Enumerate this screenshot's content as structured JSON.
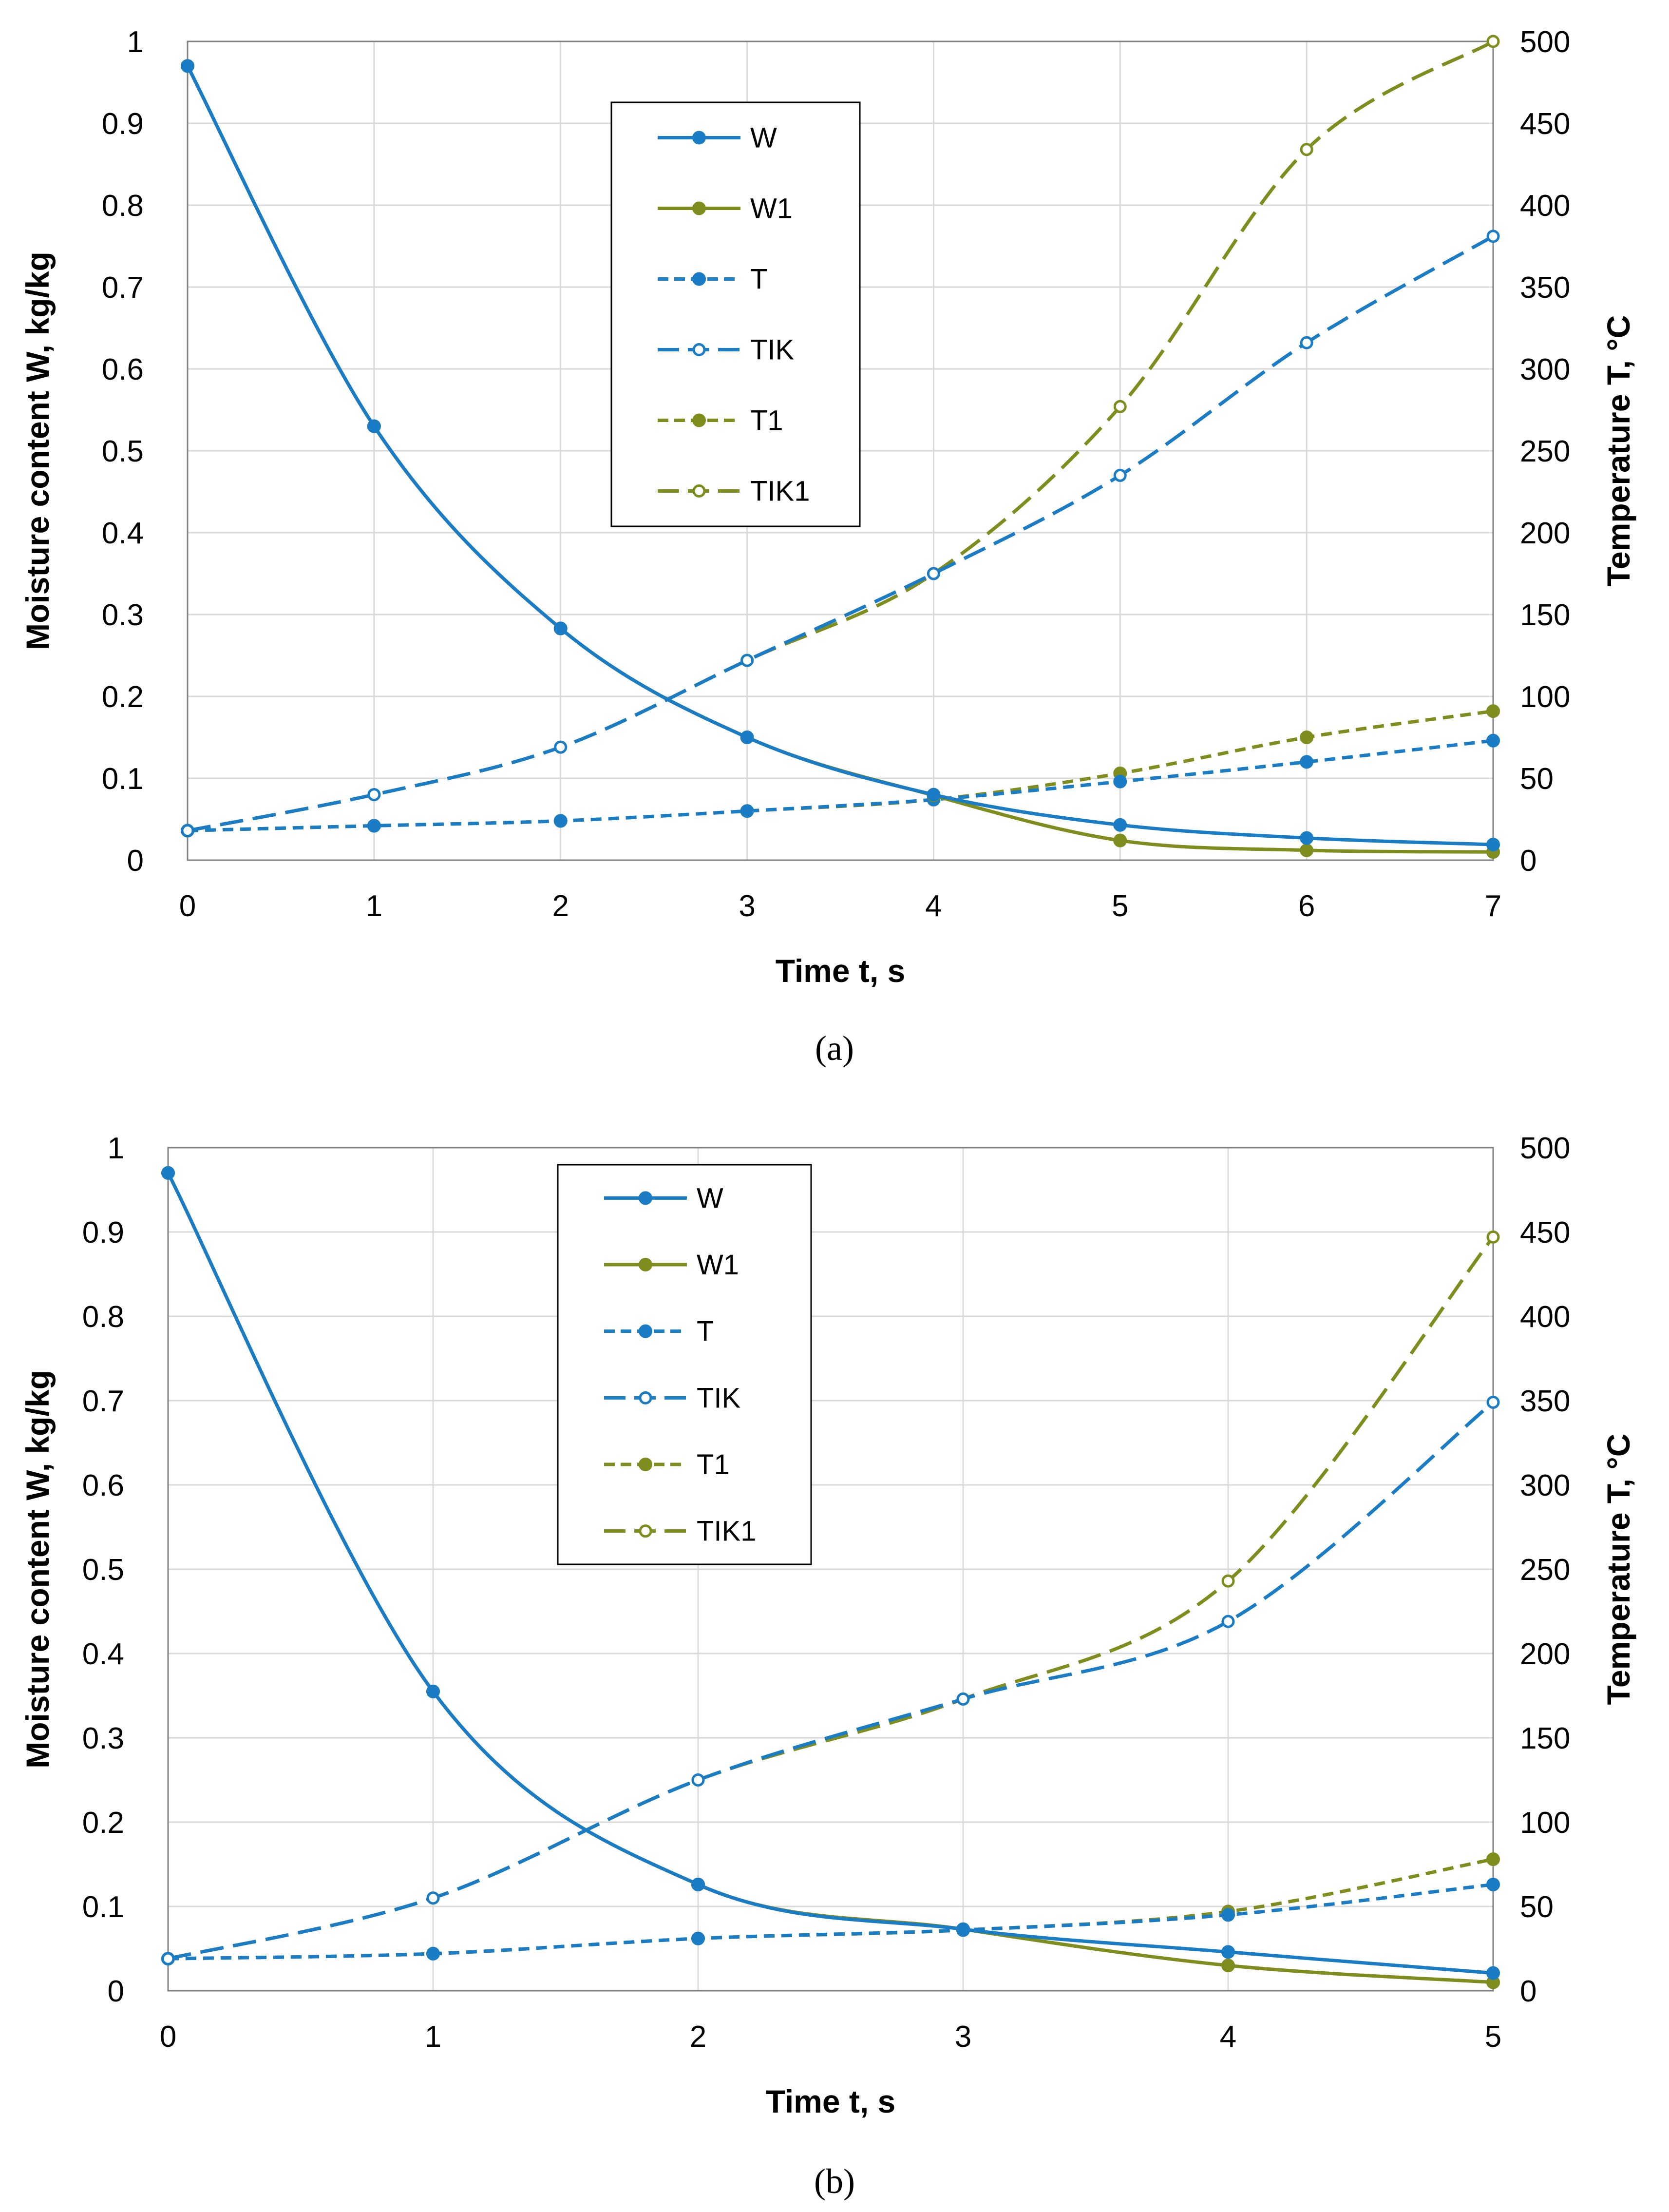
{
  "colors": {
    "blue": "#1a7cc4",
    "olive": "#7f8c1e",
    "grid": "#d9d9d9",
    "axis": "#808080"
  },
  "chart_data": [
    {
      "type": "line",
      "caption": "(a)",
      "xlabel": "Time t, s",
      "ylabel_left": "Moisture content W, kg/kg",
      "ylabel_right": "Temperature T, °C",
      "xlim": [
        0,
        7
      ],
      "ylim_left": [
        0,
        1
      ],
      "ylim_right": [
        0,
        500
      ],
      "grid": true,
      "legend_position": "top-center",
      "x_ticks": [
        "0",
        "1",
        "2",
        "3",
        "4",
        "5",
        "6",
        "7"
      ],
      "y_left_ticks": [
        "0",
        "0.1",
        "0.2",
        "0.3",
        "0.4",
        "0.5",
        "0.6",
        "0.7",
        "0.8",
        "0.9",
        "1"
      ],
      "y_right_ticks": [
        "0",
        "50",
        "100",
        "150",
        "200",
        "250",
        "300",
        "350",
        "400",
        "450",
        "500"
      ],
      "series": [
        {
          "name": "W",
          "axis": "left",
          "color": "blue",
          "dash": "solid",
          "marker": "filled",
          "x": [
            0,
            1,
            2,
            3,
            4,
            5,
            6,
            7
          ],
          "values": [
            0.97,
            0.53,
            0.283,
            0.15,
            0.08,
            0.043,
            0.027,
            0.019
          ]
        },
        {
          "name": "W1",
          "axis": "left",
          "color": "olive",
          "dash": "solid",
          "marker": "filled",
          "x": [
            0,
            1,
            2,
            3,
            4,
            5,
            6,
            7
          ],
          "values": [
            0.97,
            0.53,
            0.283,
            0.15,
            0.079,
            0.024,
            0.012,
            0.01
          ]
        },
        {
          "name": "T",
          "axis": "right",
          "color": "blue",
          "dash": "short",
          "marker": "filled",
          "x": [
            0,
            1,
            2,
            3,
            4,
            5,
            6,
            7
          ],
          "values": [
            18,
            21,
            24,
            30,
            37,
            48,
            60,
            73
          ]
        },
        {
          "name": "TIK",
          "axis": "right",
          "color": "blue",
          "dash": "long",
          "marker": "open",
          "x": [
            0,
            1,
            2,
            3,
            4,
            5,
            6,
            7
          ],
          "values": [
            18,
            40,
            69,
            122,
            175,
            235,
            316,
            381
          ]
        },
        {
          "name": "T1",
          "axis": "right",
          "color": "olive",
          "dash": "short",
          "marker": "filled",
          "x": [
            0,
            1,
            2,
            3,
            4,
            5,
            6,
            7
          ],
          "values": [
            18,
            21,
            24,
            30,
            37,
            53,
            75,
            91
          ]
        },
        {
          "name": "TIK1",
          "axis": "right",
          "color": "olive",
          "dash": "long",
          "marker": "open",
          "x": [
            0,
            1,
            2,
            3,
            4,
            5,
            6,
            7
          ],
          "values": [
            18,
            40,
            69,
            122,
            175,
            277,
            434,
            500
          ]
        }
      ]
    },
    {
      "type": "line",
      "caption": "(b)",
      "xlabel": "Time t, s",
      "ylabel_left": "Moisture content W, kg/kg",
      "ylabel_right": "Temperature T, °C",
      "xlim": [
        0,
        5
      ],
      "ylim_left": [
        0,
        1
      ],
      "ylim_right": [
        0,
        500
      ],
      "grid": true,
      "legend_position": "top-center",
      "x_ticks": [
        "0",
        "1",
        "2",
        "3",
        "4",
        "5"
      ],
      "y_left_ticks": [
        "0",
        "0.1",
        "0.2",
        "0.3",
        "0.4",
        "0.5",
        "0.6",
        "0.7",
        "0.8",
        "0.9",
        "1"
      ],
      "y_right_ticks": [
        "0",
        "50",
        "100",
        "150",
        "200",
        "250",
        "300",
        "350",
        "400",
        "450",
        "500"
      ],
      "series": [
        {
          "name": "W",
          "axis": "left",
          "color": "blue",
          "dash": "solid",
          "marker": "filled",
          "x": [
            0,
            1,
            2,
            3,
            4,
            5
          ],
          "values": [
            0.97,
            0.355,
            0.126,
            0.073,
            0.046,
            0.021
          ]
        },
        {
          "name": "W1",
          "axis": "left",
          "color": "olive",
          "dash": "solid",
          "marker": "filled",
          "x": [
            0,
            1,
            2,
            3,
            4,
            5
          ],
          "values": [
            0.97,
            0.355,
            0.126,
            0.073,
            0.03,
            0.01
          ]
        },
        {
          "name": "T",
          "axis": "right",
          "color": "blue",
          "dash": "short",
          "marker": "filled",
          "x": [
            0,
            1,
            2,
            3,
            4,
            5
          ],
          "values": [
            19,
            22,
            31,
            36,
            45,
            63
          ]
        },
        {
          "name": "TIK",
          "axis": "right",
          "color": "blue",
          "dash": "long",
          "marker": "open",
          "x": [
            0,
            1,
            2,
            3,
            4,
            5
          ],
          "values": [
            19,
            55,
            125,
            173,
            219,
            349
          ]
        },
        {
          "name": "T1",
          "axis": "right",
          "color": "olive",
          "dash": "short",
          "marker": "filled",
          "x": [
            0,
            1,
            2,
            3,
            4,
            5
          ],
          "values": [
            19,
            22,
            31,
            36,
            47,
            78
          ]
        },
        {
          "name": "TIK1",
          "axis": "right",
          "color": "olive",
          "dash": "long",
          "marker": "open",
          "x": [
            0,
            1,
            2,
            3,
            4,
            5
          ],
          "values": [
            19,
            55,
            125,
            173,
            243,
            447
          ]
        }
      ]
    }
  ]
}
